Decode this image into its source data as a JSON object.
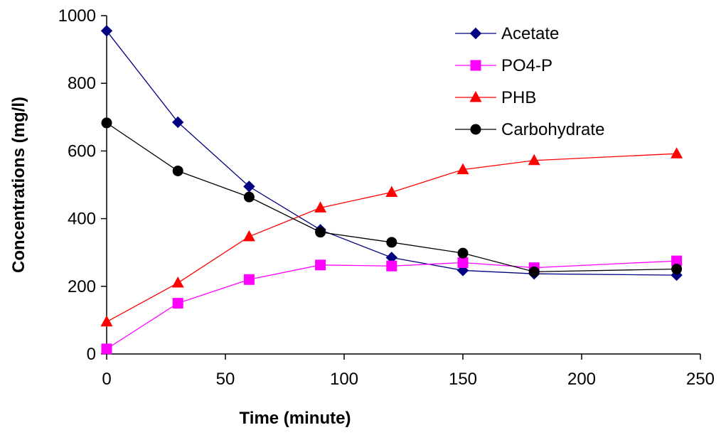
{
  "chart_data": {
    "type": "line",
    "title": "",
    "xlabel": "Time (minute)",
    "ylabel": "Concentrations (mg/l)",
    "xlim": [
      0,
      250
    ],
    "ylim": [
      0,
      1000
    ],
    "xticks": [
      0,
      50,
      100,
      150,
      200,
      250
    ],
    "yticks": [
      0,
      200,
      400,
      600,
      800,
      1000
    ],
    "grid": false,
    "legend_position": "top-right",
    "series": [
      {
        "name": "Acetate",
        "color": "#000080",
        "marker": "diamond",
        "x": [
          0,
          30,
          60,
          90,
          120,
          150,
          180,
          240
        ],
        "y": [
          955,
          685,
          495,
          367,
          285,
          247,
          237,
          233
        ]
      },
      {
        "name": "PO4-P",
        "color": "#ff00ff",
        "marker": "square",
        "x": [
          0,
          30,
          60,
          90,
          120,
          150,
          180,
          240
        ],
        "y": [
          15,
          150,
          220,
          263,
          260,
          270,
          255,
          275
        ]
      },
      {
        "name": "PHB",
        "color": "#ff0000",
        "marker": "triangle",
        "x": [
          0,
          30,
          60,
          90,
          120,
          150,
          180,
          240
        ],
        "y": [
          95,
          210,
          347,
          432,
          478,
          545,
          572,
          592
        ]
      },
      {
        "name": "Carbohydrate",
        "color": "#000000",
        "marker": "circle",
        "x": [
          0,
          30,
          60,
          90,
          120,
          150,
          180,
          240
        ],
        "y": [
          683,
          541,
          464,
          360,
          330,
          298,
          243,
          251
        ]
      }
    ]
  }
}
